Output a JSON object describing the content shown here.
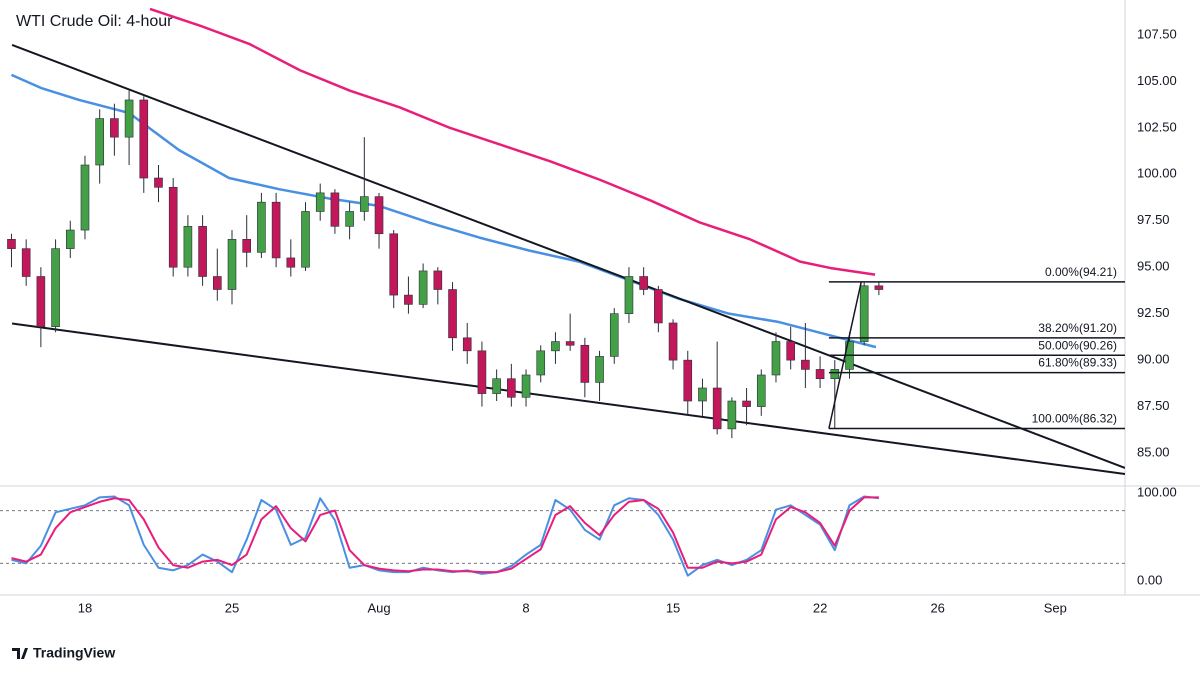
{
  "chart_data": [
    {
      "type": "candlestick",
      "title": "WTI Crude Oil: 4-hour",
      "xlim": [
        -2.89,
        35.37
      ],
      "xticks": [
        {
          "value": 0,
          "label": "18"
        },
        {
          "value": 5,
          "label": "25"
        },
        {
          "value": 10,
          "label": "Aug"
        },
        {
          "value": 15,
          "label": "8"
        },
        {
          "value": 20,
          "label": "15"
        },
        {
          "value": 25,
          "label": "22"
        },
        {
          "value": 29,
          "label": "26"
        },
        {
          "value": 33,
          "label": "Sep"
        }
      ],
      "ylim": [
        83.28,
        109.38
      ],
      "yticks": [
        {
          "value": 85,
          "label": "85.00"
        },
        {
          "value": 87.5,
          "label": "87.50"
        },
        {
          "value": 90,
          "label": "90.00"
        },
        {
          "value": 92.5,
          "label": "92.50"
        },
        {
          "value": 95,
          "label": "95.00"
        },
        {
          "value": 97.5,
          "label": "97.50"
        },
        {
          "value": 100,
          "label": "100.00"
        },
        {
          "value": 102.5,
          "label": "102.50"
        },
        {
          "value": 105,
          "label": "105.00"
        },
        {
          "value": 107.5,
          "label": "107.50"
        }
      ],
      "up_color": "#43a047",
      "down_color": "#c2185b",
      "wick_color": "#2a2e39",
      "x": [
        -2.5,
        -2,
        -1.5,
        -1,
        -0.5,
        0,
        0.5,
        1,
        1.5,
        2,
        2.5,
        3,
        3.5,
        4,
        4.5,
        5,
        5.5,
        6,
        6.5,
        7,
        7.5,
        8,
        8.5,
        9,
        9.5,
        10,
        10.5,
        11,
        11.5,
        12,
        12.5,
        13,
        13.5,
        14,
        14.5,
        15,
        15.5,
        16,
        16.5,
        17,
        17.5,
        18,
        18.5,
        19,
        19.5,
        20,
        20.5,
        21,
        21.5,
        22,
        22.5,
        23,
        23.5,
        24,
        24.5,
        25,
        25.5,
        26,
        26.5,
        27
      ],
      "open": [
        96.5,
        96,
        94.5,
        91.8,
        96,
        97,
        100.5,
        103,
        102,
        104,
        99.8,
        99.3,
        95,
        97.2,
        94.5,
        93.8,
        96.5,
        95.8,
        98.5,
        95.5,
        95,
        98,
        99,
        97.2,
        98,
        98.8,
        96.8,
        93.5,
        93,
        94.8,
        93.8,
        91.2,
        90.5,
        88.2,
        89,
        88,
        89.2,
        90.5,
        91,
        90.8,
        88.8,
        90.2,
        92.5,
        94.5,
        93.8,
        92,
        90,
        87.8,
        88.5,
        86.3,
        87.8,
        87.5,
        89.2,
        91,
        90,
        89.5,
        89,
        89.5,
        91,
        94
      ],
      "high": [
        96.8,
        96.5,
        95,
        96.5,
        97.5,
        101,
        103.5,
        103.8,
        104.5,
        104.2,
        100.5,
        99.8,
        97.8,
        97.8,
        96,
        97,
        97.8,
        99,
        99,
        96.5,
        98.5,
        99.5,
        99.2,
        98.5,
        102,
        99,
        97,
        94.5,
        95.2,
        95,
        94.2,
        92,
        91,
        89.5,
        89.8,
        89.5,
        90.8,
        91.5,
        92.5,
        91.2,
        90.5,
        92.8,
        95,
        95,
        94,
        92.2,
        90.5,
        89,
        91,
        88,
        88.5,
        89.5,
        91.5,
        91.8,
        92,
        90.2,
        90,
        91.5,
        94.21,
        94.2
      ],
      "low": [
        95,
        94,
        90.7,
        91.5,
        95.5,
        96.5,
        99.5,
        101,
        100.5,
        99,
        98.5,
        94.5,
        94.5,
        94,
        93.2,
        93,
        95,
        95.5,
        95,
        94.5,
        94.8,
        97.5,
        96.8,
        96.5,
        97.5,
        96,
        92.8,
        92.5,
        92.8,
        93,
        90.5,
        89.8,
        87.5,
        87.8,
        87.5,
        87.5,
        88.8,
        89.8,
        90.5,
        88,
        87.8,
        89.8,
        92,
        93.5,
        91.5,
        89.5,
        87,
        87,
        86,
        85.8,
        86.5,
        87,
        88.8,
        89.5,
        88.5,
        88.5,
        86.32,
        89,
        90.8,
        93.5
      ],
      "close": [
        96,
        94.5,
        91.8,
        96,
        97,
        100.5,
        103,
        102,
        104,
        99.8,
        99.3,
        95,
        97.2,
        94.5,
        93.8,
        96.5,
        95.8,
        98.5,
        95.5,
        95,
        98,
        99,
        97.2,
        98,
        98.8,
        96.8,
        93.5,
        93,
        94.8,
        93.8,
        91.2,
        90.5,
        88.2,
        89,
        88,
        89.2,
        90.5,
        91,
        90.8,
        88.8,
        90.2,
        92.5,
        94.5,
        93.8,
        92,
        90,
        87.8,
        88.5,
        86.3,
        87.8,
        87.5,
        89.2,
        91,
        90,
        89.5,
        89,
        89.5,
        91,
        94,
        93.8
      ],
      "series": [
        {
          "color": "#4a90e2",
          "x": [
            -2.5,
            -1.5,
            -0.2,
            1.5,
            3.2,
            4.9,
            6.6,
            8.3,
            10,
            11.7,
            13.4,
            15.1,
            16.8,
            18.5,
            20.2,
            21.9,
            23.6,
            25.3,
            26.9
          ],
          "values": [
            105.35,
            104.65,
            104,
            103.3,
            101.3,
            99.8,
            99.2,
            98.7,
            98.3,
            97.4,
            96.6,
            95.9,
            95.3,
            94.3,
            93.3,
            92.5,
            92.05,
            91.35,
            90.7
          ]
        },
        {
          "color": "#e91e7a",
          "x": [
            2.21,
            3.91,
            5.61,
            7.31,
            9.01,
            10.71,
            12.41,
            14.12,
            15.82,
            17.52,
            19.22,
            20.92,
            22.62,
            24.32,
            25.34,
            26.87
          ],
          "values": [
            108.9,
            108,
            107,
            105.6,
            104.5,
            103.6,
            102.5,
            101.6,
            100.7,
            99.7,
            98.6,
            97.4,
            96.5,
            95.3,
            94.96,
            94.6
          ]
        }
      ],
      "trendlines": [
        {
          "x": [
            -2.48,
            35.37
          ],
          "values": [
            106.96,
            84.2
          ]
        },
        {
          "x": [
            -2.48,
            35.37
          ],
          "values": [
            91.97,
            83.87
          ]
        }
      ],
      "fib": {
        "swing_x": [
          25.3,
          26.4
        ],
        "levels": [
          {
            "value": 94.21,
            "label": "0.00%(94.21)"
          },
          {
            "value": 91.2,
            "label": "38.20%(91.20)"
          },
          {
            "value": 90.26,
            "label": "50.00%(90.26)"
          },
          {
            "value": 89.33,
            "label": "61.80%(89.33)"
          },
          {
            "value": 86.32,
            "label": "100.00%(86.32)"
          }
        ]
      }
    },
    {
      "type": "line",
      "ylim": [
        -16,
        106.8
      ],
      "yticks": [
        {
          "value": 0,
          "label": "0.00"
        },
        {
          "value": 100,
          "label": "100.00"
        }
      ],
      "bands": [
        20,
        80
      ],
      "x": [
        -2.5,
        -2,
        -1.5,
        -1,
        -0.5,
        0,
        0.5,
        1,
        1.5,
        2,
        2.5,
        3,
        3.5,
        4,
        4.5,
        5,
        5.5,
        6,
        6.5,
        7,
        7.5,
        8,
        8.5,
        9,
        9.5,
        10,
        10.5,
        11,
        11.5,
        12,
        12.5,
        13,
        13.5,
        14,
        14.5,
        15,
        15.5,
        16,
        16.5,
        17,
        17.5,
        18,
        18.5,
        19,
        19.5,
        20,
        20.5,
        21,
        21.5,
        22,
        22.5,
        23,
        23.5,
        24,
        24.5,
        25,
        25.5,
        26,
        26.5,
        27
      ],
      "series": [
        {
          "color": "#4a90e2",
          "values": [
            24,
            20,
            40,
            78,
            82,
            86,
            95,
            96,
            86,
            41,
            15,
            12,
            18,
            30,
            22,
            10,
            47,
            92,
            81,
            41,
            49,
            94,
            69,
            15,
            18,
            12,
            10,
            10,
            15,
            12,
            10,
            12,
            8,
            10,
            17,
            30,
            41,
            92,
            81,
            58,
            47,
            86,
            94,
            92,
            75,
            47,
            6,
            18,
            24,
            18,
            24,
            35,
            81,
            86,
            75,
            64,
            35,
            86,
            96,
            94
          ]
        },
        {
          "color": "#e91e7a",
          "values": [
            26,
            22,
            30,
            60,
            78,
            84,
            90,
            94,
            92,
            70,
            38,
            18,
            15,
            22,
            24,
            18,
            30,
            70,
            85,
            60,
            45,
            75,
            80,
            35,
            18,
            14,
            12,
            11,
            13,
            13,
            11,
            11,
            10,
            10,
            14,
            25,
            36,
            75,
            85,
            66,
            52,
            75,
            90,
            92,
            82,
            55,
            15,
            15,
            22,
            20,
            22,
            30,
            70,
            84,
            78,
            66,
            40,
            80,
            95,
            95
          ]
        }
      ]
    }
  ],
  "footer": {
    "brand": "TradingView"
  }
}
